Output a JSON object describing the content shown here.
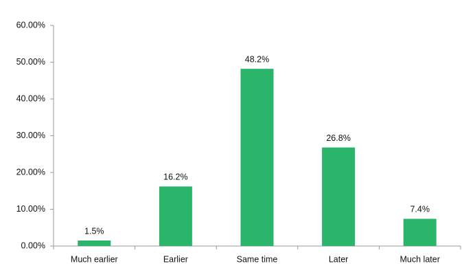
{
  "chart_data": {
    "type": "bar",
    "categories": [
      "Much earlier",
      "Earlier",
      "Same time",
      "Later",
      "Much later"
    ],
    "values": [
      1.5,
      16.2,
      48.2,
      26.8,
      7.4
    ],
    "value_labels": [
      "1.5%",
      "16.2%",
      "48.2%",
      "26.8%",
      "7.4%"
    ],
    "color": "#2bb56b",
    "ylim": [
      0,
      60
    ],
    "yticks": [
      {
        "value": 0,
        "label": "0.00%"
      },
      {
        "value": 10,
        "label": "10.00%"
      },
      {
        "value": 20,
        "label": "20.00%"
      },
      {
        "value": 30,
        "label": "30.00%"
      },
      {
        "value": 40,
        "label": "40.00%"
      },
      {
        "value": 50,
        "label": "50.00%"
      },
      {
        "value": 60,
        "label": "60.00%"
      }
    ],
    "grid": false
  }
}
